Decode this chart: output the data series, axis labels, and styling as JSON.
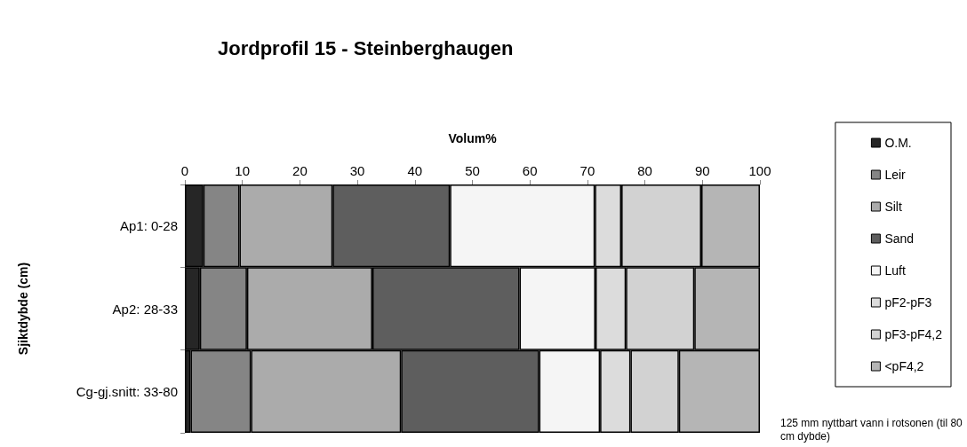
{
  "chart_data": {
    "type": "bar",
    "orientation": "horizontal",
    "stacked": true,
    "title": "Jordprofil 15 - Steinberghaugen",
    "xlabel": "Volum%",
    "ylabel": "Sjiktdybde (cm)",
    "categories": [
      "Ap1: 0-28",
      "Ap2: 28-33",
      "Cg-gj.snitt: 33-80"
    ],
    "xlim": [
      0,
      100
    ],
    "xticks": [
      0,
      10,
      20,
      30,
      40,
      50,
      60,
      70,
      80,
      90,
      100
    ],
    "grid": false,
    "legend": "right",
    "annotations": [
      "125 mm nyttbart vann i rotsonen (til 80 cm dybde)"
    ],
    "series": [
      {
        "name": "O.M.",
        "color": "#262626",
        "values": [
          3.2,
          2.6,
          1.0
        ]
      },
      {
        "name": "Leir",
        "color": "#858585",
        "values": [
          6.3,
          8.2,
          10.5
        ]
      },
      {
        "name": "Silt",
        "color": "#ababab",
        "values": [
          16.2,
          21.8,
          26.1
        ]
      },
      {
        "name": "Sand",
        "color": "#5e5e5e",
        "values": [
          20.4,
          25.6,
          24.0
        ]
      },
      {
        "name": "Luft",
        "color": "#f5f5f5",
        "values": [
          25.2,
          13.2,
          10.6
        ]
      },
      {
        "name": "pF2-pF3",
        "color": "#dcdcdc",
        "values": [
          4.6,
          5.3,
          5.3
        ]
      },
      {
        "name": "pF3-pF4,2",
        "color": "#d2d2d2",
        "values": [
          13.9,
          11.9,
          8.4
        ]
      },
      {
        "name": "<pF4,2",
        "color": "#b5b5b5",
        "values": [
          10.2,
          11.4,
          14.1
        ]
      }
    ]
  }
}
